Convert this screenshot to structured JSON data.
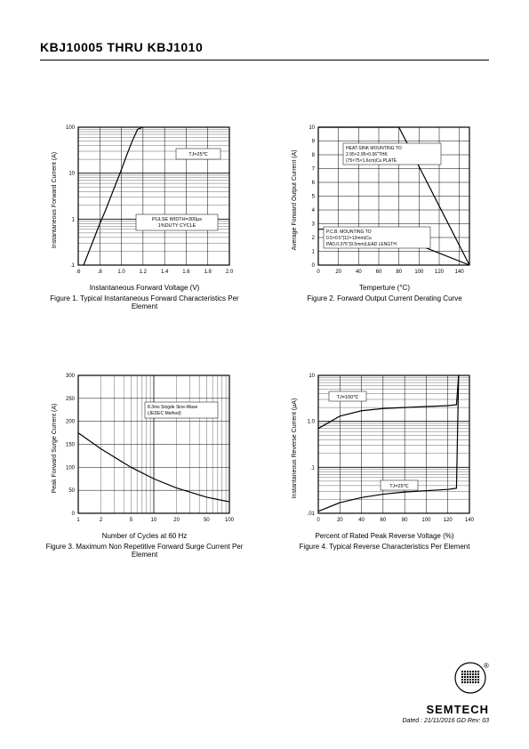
{
  "header": {
    "title": "KBJ10005 THRU KBJ1010"
  },
  "footer": {
    "brand": "SEMTECH",
    "date": "Dated : 21/11/2016 GD Rev: 03"
  },
  "fig1": {
    "type": "line",
    "xlabel": "Instantaneous Forward Voltage (V)",
    "caption": "Figure 1. Typical Instantaneous Forward Characteristics Per Element",
    "ylabel": "Instantaneous Forward Current (A)",
    "yscale": "log",
    "xticks": [
      ".6",
      ".8",
      "1.0",
      "1.2",
      "1.4",
      "1.6",
      "1.8",
      "2.0"
    ],
    "yticks": [
      ".1",
      "1",
      "10",
      "100"
    ],
    "xlim": [
      0.6,
      2.0
    ],
    "ylim_log": [
      0.1,
      100
    ],
    "note1": "TJ=25℃",
    "note2": "PULSE WIDTH=300µs\n1%DUTY CYCLE",
    "series": {
      "color": "#000000",
      "line_width": 1.2,
      "points": [
        [
          0.65,
          0.1
        ],
        [
          0.7,
          0.2
        ],
        [
          0.75,
          0.4
        ],
        [
          0.8,
          0.8
        ],
        [
          0.85,
          1.5
        ],
        [
          0.9,
          3
        ],
        [
          0.95,
          6
        ],
        [
          1.0,
          12
        ],
        [
          1.05,
          25
        ],
        [
          1.1,
          50
        ],
        [
          1.15,
          90
        ],
        [
          1.2,
          100
        ]
      ]
    },
    "grid_color": "#000000",
    "background_color": "#ffffff"
  },
  "fig2": {
    "type": "line",
    "xlabel": "Temperture (°C)",
    "caption": "Figure 2. Forward Output Current Derating Curve",
    "ylabel": "Average Forward Output Current (A)",
    "xticks": [
      "0",
      "20",
      "40",
      "60",
      "80",
      "100",
      "120",
      "140"
    ],
    "yticks": [
      "0",
      "1",
      "2",
      "3",
      "4",
      "5",
      "6",
      "7",
      "8",
      "9",
      "10"
    ],
    "xlim": [
      0,
      150
    ],
    "ylim": [
      0,
      10
    ],
    "note_top": "HEAT-SINK MOUNTING TO\n2.95×2.95×0.06\"THK\n(75×75×1.6cm)Cu PLATE",
    "note_bot": "P.C.B. MOUNTING TO\n0.5×0.5\"(12×12mm)Cu\nPAD,0.375\"(9.5mm)LEAD LENGTH",
    "series_a": {
      "color": "#000000",
      "line_width": 1.2,
      "points": [
        [
          0,
          10
        ],
        [
          80,
          10
        ],
        [
          150,
          0
        ]
      ]
    },
    "series_b": {
      "color": "#000000",
      "line_width": 1.2,
      "points": [
        [
          0,
          2.6
        ],
        [
          60,
          2.6
        ],
        [
          150,
          0
        ]
      ]
    },
    "grid_color": "#000000",
    "background_color": "#ffffff"
  },
  "fig3": {
    "type": "line",
    "xlabel": "Number of Cycles at 60 Hz",
    "caption": "Figure 3. Maximum Non Repetitive Forward Surge Current Per Element",
    "ylabel": "Peak Forward Surge Current (A)",
    "xscale": "log",
    "xticks": [
      "1",
      "2",
      "5",
      "10",
      "20",
      "50",
      "100"
    ],
    "yticks": [
      "0",
      "50",
      "100",
      "150",
      "200",
      "250",
      "300"
    ],
    "xlim_log": [
      1,
      100
    ],
    "ylim": [
      0,
      300
    ],
    "note": "8.3ms Singde Sine-Wase\n(JEDEC Method)",
    "series": {
      "color": "#000000",
      "line_width": 1.2,
      "points": [
        [
          1,
          175
        ],
        [
          2,
          140
        ],
        [
          5,
          100
        ],
        [
          10,
          75
        ],
        [
          20,
          55
        ],
        [
          50,
          35
        ],
        [
          100,
          25
        ]
      ]
    },
    "grid_color": "#000000",
    "background_color": "#ffffff"
  },
  "fig4": {
    "type": "line",
    "xlabel": "Percent of Rated Peak Reverse Voltage (%)",
    "caption": "Figure 4. Typical Reverse Characteristics Per Element",
    "ylabel": "Instantaneous Reverse Current (µA)",
    "yscale": "log",
    "xticks": [
      "0",
      "20",
      "40",
      "60",
      "80",
      "100",
      "120",
      "140"
    ],
    "yticks": [
      ".01",
      ".1",
      "1.0",
      "10"
    ],
    "xlim": [
      0,
      140
    ],
    "ylim_log": [
      0.01,
      10
    ],
    "label_a": "TJ=100℃",
    "label_b": "TJ=25℃",
    "series_a": {
      "color": "#000000",
      "line_width": 1.2,
      "points": [
        [
          0,
          0.7
        ],
        [
          20,
          1.3
        ],
        [
          40,
          1.7
        ],
        [
          60,
          1.9
        ],
        [
          80,
          2.0
        ],
        [
          100,
          2.1
        ],
        [
          120,
          2.2
        ],
        [
          128,
          2.3
        ],
        [
          130,
          10
        ]
      ]
    },
    "series_b": {
      "color": "#000000",
      "line_width": 1.2,
      "points": [
        [
          0,
          0.011
        ],
        [
          20,
          0.017
        ],
        [
          40,
          0.022
        ],
        [
          60,
          0.026
        ],
        [
          80,
          0.029
        ],
        [
          100,
          0.031
        ],
        [
          120,
          0.033
        ],
        [
          128,
          0.035
        ],
        [
          130,
          10
        ]
      ]
    },
    "grid_color": "#000000",
    "background_color": "#ffffff"
  }
}
